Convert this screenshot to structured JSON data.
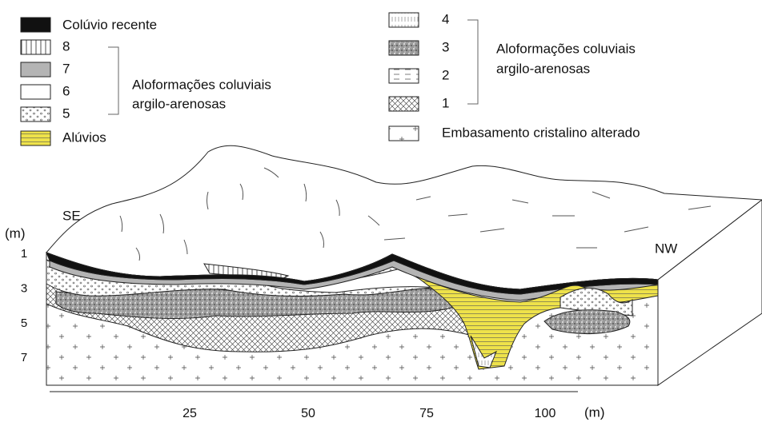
{
  "legend_left": {
    "items": [
      "Colúvio recente",
      "8",
      "7",
      "6",
      "5",
      "Alúvios"
    ],
    "group_label": [
      "Aloformações coluviais",
      "argilo-arenosas"
    ]
  },
  "legend_right": {
    "items": [
      "4",
      "3",
      "2",
      "1",
      "Embasamento cristalino alterado"
    ],
    "group_label": [
      "Aloformações coluviais",
      "argilo-arenosas"
    ]
  },
  "labels": {
    "left_end": "SE",
    "right_end": "NW"
  },
  "depth_axis": {
    "label": "(m)",
    "ticks": [
      1,
      3,
      5,
      7
    ]
  },
  "distance_axis": {
    "label": "(m)",
    "ticks": [
      25,
      50,
      75,
      100
    ]
  }
}
